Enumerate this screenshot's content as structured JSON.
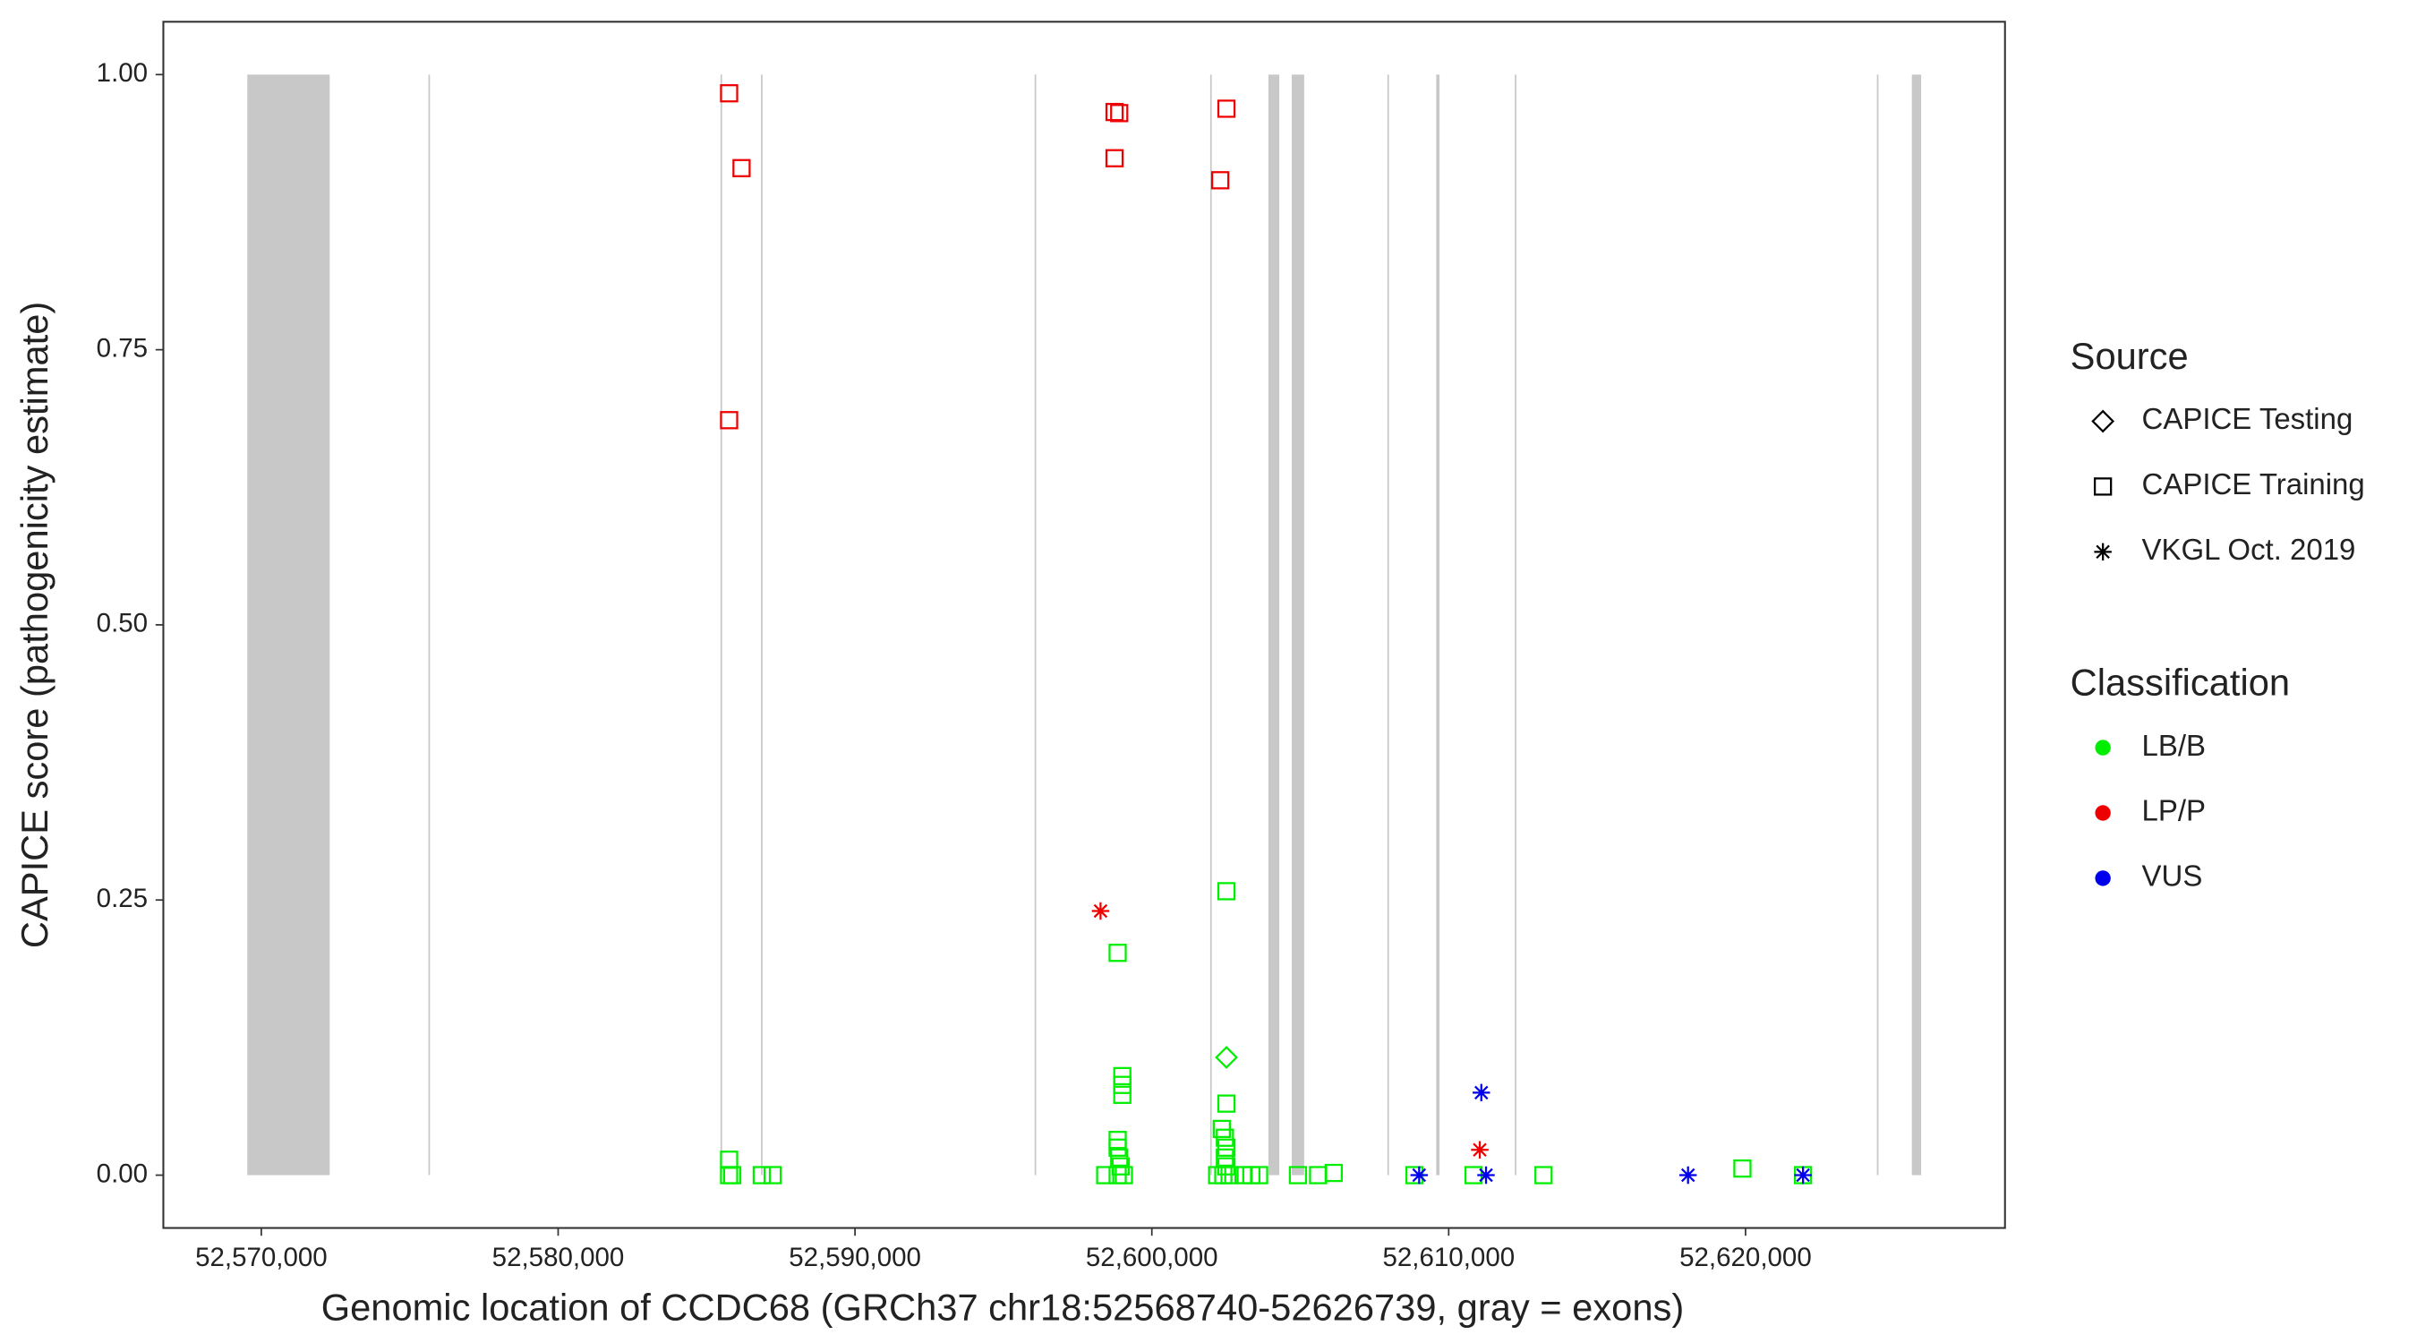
{
  "chart_data": {
    "type": "scatter",
    "x_label": "Genomic location of CCDC68 (GRCh37 chr18:52568740-52626739, gray = exons)",
    "y_label": "CAPICE score (pathogenicity estimate)",
    "xlim": [
      52566700,
      52628740
    ],
    "ylim": [
      -0.048,
      1.048
    ],
    "xticks": [
      {
        "value": 52570000,
        "label": "52,570,000"
      },
      {
        "value": 52580000,
        "label": "52,580,000"
      },
      {
        "value": 52590000,
        "label": "52,590,000"
      },
      {
        "value": 52600000,
        "label": "52,600,000"
      },
      {
        "value": 52610000,
        "label": "52,610,000"
      },
      {
        "value": 52620000,
        "label": "52,620,000"
      }
    ],
    "yticks": [
      {
        "value": 0,
        "label": "0.00"
      },
      {
        "value": 0.25,
        "label": "0.25"
      },
      {
        "value": 0.5,
        "label": "0.50"
      },
      {
        "value": 0.75,
        "label": "0.75"
      },
      {
        "value": 1,
        "label": "1.00"
      }
    ],
    "exons": [
      [
        52569529,
        52572304
      ],
      [
        52575630,
        52575680
      ],
      [
        52585470,
        52585520
      ],
      [
        52586835,
        52586885
      ],
      [
        52596050,
        52596100
      ],
      [
        52601965,
        52602015
      ],
      [
        52603927,
        52604293
      ],
      [
        52604712,
        52605131
      ],
      [
        52607935,
        52607985
      ],
      [
        52609580,
        52609690
      ],
      [
        52612225,
        52612275
      ],
      [
        52624425,
        52624475
      ],
      [
        52625602,
        52625916
      ]
    ],
    "exon_color": "#c8c8c8",
    "shape_legend_title": "Source",
    "sources": [
      {
        "name": "CAPICE Testing",
        "shape": "diamond"
      },
      {
        "name": "CAPICE Training",
        "shape": "square"
      },
      {
        "name": "VKGL Oct. 2019",
        "shape": "asterisk"
      }
    ],
    "color_legend_title": "Classification",
    "series": [
      {
        "name": "LB/B",
        "color": "#00ee00",
        "x": [
          52585759,
          52585759,
          52585864,
          52586859,
          52587225,
          52598429,
          52598848,
          52598848,
          52598901,
          52598953,
          52599005,
          52599005,
          52599005,
          52598848,
          52598848,
          52599058,
          52602513,
          52602513,
          52602356,
          52602461,
          52602513,
          52602461,
          52602513,
          52602199,
          52602408,
          52602618,
          52603089,
          52603351,
          52603613,
          52604921,
          52605602,
          52606126,
          52608848,
          52610838,
          52613194,
          52619895,
          52621937,
          52602513
        ],
        "values": [
          0.014,
          0,
          0,
          0,
          0,
          0,
          0.025,
          0.032,
          0.016,
          0.008,
          0.09,
          0.082,
          0.073,
          0.202,
          0,
          0,
          0.258,
          0.065,
          0.042,
          0.034,
          0.025,
          0.016,
          0.008,
          0,
          0,
          0,
          0,
          0,
          0,
          0,
          0,
          0.002,
          0,
          0,
          0,
          0.006,
          0,
          0.107
        ],
        "source": [
          "CAPICE Training",
          "CAPICE Training",
          "CAPICE Training",
          "CAPICE Training",
          "CAPICE Training",
          "CAPICE Training",
          "CAPICE Training",
          "CAPICE Training",
          "CAPICE Training",
          "CAPICE Training",
          "CAPICE Training",
          "CAPICE Training",
          "CAPICE Training",
          "CAPICE Training",
          "CAPICE Training",
          "CAPICE Training",
          "CAPICE Training",
          "CAPICE Training",
          "CAPICE Training",
          "CAPICE Training",
          "CAPICE Training",
          "CAPICE Training",
          "CAPICE Training",
          "CAPICE Training",
          "CAPICE Training",
          "CAPICE Training",
          "CAPICE Training",
          "CAPICE Training",
          "CAPICE Training",
          "CAPICE Training",
          "CAPICE Training",
          "CAPICE Training",
          "CAPICE Training",
          "CAPICE Training",
          "CAPICE Training",
          "CAPICE Training",
          "CAPICE Training",
          "CAPICE Testing"
        ]
      },
      {
        "name": "LP/P",
        "color": "#ee0000",
        "x": [
          52585759,
          52586178,
          52585759,
          52598743,
          52598901,
          52598743,
          52602513,
          52602304,
          52598272,
          52611047
        ],
        "values": [
          0.983,
          0.915,
          0.686,
          0.966,
          0.965,
          0.924,
          0.969,
          0.904,
          0.24,
          0.023
        ],
        "source": [
          "CAPICE Training",
          "CAPICE Training",
          "CAPICE Training",
          "CAPICE Training",
          "CAPICE Training",
          "CAPICE Training",
          "CAPICE Training",
          "CAPICE Training",
          "VKGL Oct. 2019",
          "VKGL Oct. 2019"
        ]
      },
      {
        "name": "VUS",
        "color": "#0000ee",
        "x": [
          52609005,
          52611099,
          52611257,
          52618063,
          52621937
        ],
        "values": [
          0,
          0.075,
          0,
          0,
          0
        ],
        "source": [
          "VKGL Oct. 2019",
          "VKGL Oct. 2019",
          "VKGL Oct. 2019",
          "VKGL Oct. 2019",
          "VKGL Oct. 2019"
        ]
      }
    ]
  }
}
